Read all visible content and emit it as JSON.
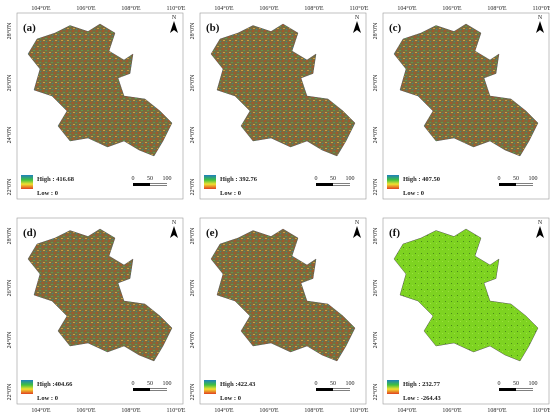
{
  "panels": [
    {
      "label": "(a)",
      "high": "High : 416.68",
      "low": "Low : 0"
    },
    {
      "label": "(b)",
      "high": "High : 392.76",
      "low": "Low : 0"
    },
    {
      "label": "(c)",
      "high": "High : 407.50",
      "low": "Low : 0"
    },
    {
      "label": "(d)",
      "high": "High :404.66",
      "low": "Low : 0"
    },
    {
      "label": "(e)",
      "high": "High :422.43",
      "low": "Low : 0"
    },
    {
      "label": "(f)",
      "high": "High : 232.77",
      "low": "Low : -264.43"
    }
  ],
  "longitude_labels": [
    "104°0'E",
    "106°0'E",
    "108°0'E",
    "110°0'E"
  ],
  "latitude_labels": [
    "28°0'N",
    "26°0'N",
    "24°0'N",
    "22°0'N"
  ],
  "scale_labels": [
    "0",
    "50",
    "100"
  ],
  "north_label": "N"
}
